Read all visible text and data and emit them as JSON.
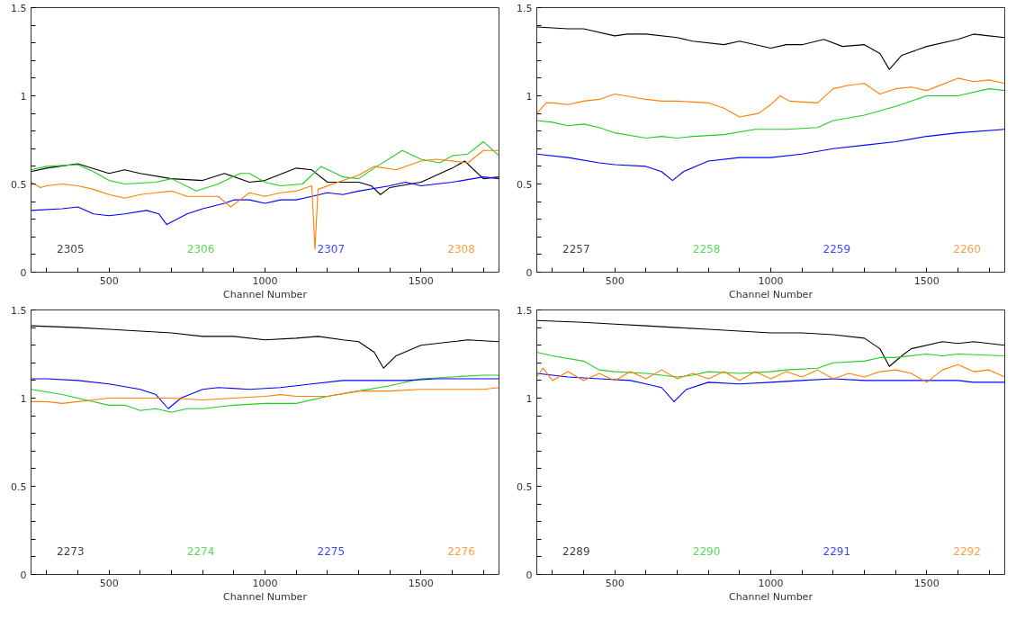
{
  "chart_data": [
    {
      "type": "line",
      "xlabel": "Channel Number",
      "xlim": [
        250,
        1750
      ],
      "ylim": [
        0,
        1.5
      ],
      "xticks": [
        {
          "value": 300,
          "label": null
        },
        {
          "value": 400,
          "label": null
        },
        500,
        {
          "value": 600,
          "label": null
        },
        {
          "value": 700,
          "label": null
        },
        {
          "value": 800,
          "label": null
        },
        {
          "value": 900,
          "label": null
        },
        1000,
        {
          "value": 1100,
          "label": null
        },
        {
          "value": 1200,
          "label": null
        },
        {
          "value": 1300,
          "label": null
        },
        {
          "value": 1400,
          "label": null
        },
        1500,
        {
          "value": 1600,
          "label": null
        },
        {
          "value": 1700,
          "label": null
        }
      ],
      "yticks": [
        0,
        {
          "value": 0.1,
          "label": null
        },
        {
          "value": 0.2,
          "label": null
        },
        {
          "value": 0.3,
          "label": null
        },
        {
          "value": 0.4,
          "label": null
        },
        0.5,
        {
          "value": 0.6,
          "label": null
        },
        {
          "value": 0.7,
          "label": null
        },
        {
          "value": 0.8,
          "label": null
        },
        {
          "value": 0.9,
          "label": null
        },
        1,
        {
          "value": 1.1,
          "label": null
        },
        {
          "value": 1.2,
          "label": null
        },
        {
          "value": 1.3,
          "label": null
        },
        {
          "value": 1.4,
          "label": null
        },
        1.5
      ],
      "grid": false,
      "marker": "none",
      "line_style": "solid",
      "series": [
        {
          "name": "2305",
          "color": "#000000",
          "x": [
            250,
            300,
            400,
            500,
            550,
            600,
            700,
            800,
            870,
            950,
            1000,
            1100,
            1150,
            1200,
            1300,
            1340,
            1370,
            1400,
            1500,
            1600,
            1640,
            1700,
            1750
          ],
          "values": [
            0.57,
            0.59,
            0.615,
            0.56,
            0.58,
            0.56,
            0.53,
            0.52,
            0.56,
            0.51,
            0.52,
            0.59,
            0.58,
            0.51,
            0.51,
            0.49,
            0.44,
            0.48,
            0.51,
            0.59,
            0.63,
            0.53,
            0.54
          ]
        },
        {
          "name": "2306",
          "color": "#22cc22",
          "x": [
            250,
            300,
            400,
            450,
            500,
            550,
            650,
            700,
            780,
            850,
            920,
            950,
            1000,
            1050,
            1120,
            1180,
            1250,
            1300,
            1350,
            1440,
            1500,
            1560,
            1600,
            1650,
            1700,
            1750
          ],
          "values": [
            0.58,
            0.6,
            0.61,
            0.57,
            0.52,
            0.5,
            0.51,
            0.53,
            0.46,
            0.5,
            0.56,
            0.56,
            0.51,
            0.49,
            0.5,
            0.6,
            0.54,
            0.53,
            0.59,
            0.69,
            0.64,
            0.62,
            0.66,
            0.67,
            0.74,
            0.66
          ]
        },
        {
          "name": "2307",
          "color": "#0000ff",
          "x": [
            250,
            350,
            400,
            450,
            500,
            550,
            620,
            660,
            685,
            750,
            800,
            870,
            900,
            950,
            1000,
            1050,
            1100,
            1150,
            1200,
            1250,
            1300,
            1400,
            1450,
            1500,
            1600,
            1700,
            1750
          ],
          "values": [
            0.35,
            0.36,
            0.37,
            0.33,
            0.32,
            0.33,
            0.35,
            0.33,
            0.27,
            0.33,
            0.36,
            0.39,
            0.41,
            0.41,
            0.39,
            0.41,
            0.41,
            0.43,
            0.45,
            0.44,
            0.46,
            0.49,
            0.51,
            0.49,
            0.51,
            0.54,
            0.53
          ]
        },
        {
          "name": "2308",
          "color": "#ff7f00",
          "x": [
            250,
            280,
            300,
            350,
            400,
            450,
            500,
            550,
            600,
            650,
            700,
            750,
            850,
            890,
            920,
            950,
            1000,
            1050,
            1100,
            1150,
            1160,
            1170,
            1250,
            1300,
            1350,
            1420,
            1500,
            1550,
            1650,
            1700,
            1750
          ],
          "values": [
            0.51,
            0.48,
            0.49,
            0.5,
            0.49,
            0.47,
            0.44,
            0.42,
            0.44,
            0.45,
            0.46,
            0.43,
            0.43,
            0.37,
            0.41,
            0.45,
            0.43,
            0.45,
            0.46,
            0.49,
            0.13,
            0.47,
            0.52,
            0.55,
            0.6,
            0.58,
            0.63,
            0.64,
            0.62,
            0.69,
            0.69
          ]
        }
      ]
    },
    {
      "type": "line",
      "xlabel": "Channel Number",
      "xlim": [
        250,
        1750
      ],
      "ylim": [
        0,
        1.5
      ],
      "xticks": [
        {
          "value": 300,
          "label": null
        },
        {
          "value": 400,
          "label": null
        },
        500,
        {
          "value": 600,
          "label": null
        },
        {
          "value": 700,
          "label": null
        },
        {
          "value": 800,
          "label": null
        },
        {
          "value": 900,
          "label": null
        },
        1000,
        {
          "value": 1100,
          "label": null
        },
        {
          "value": 1200,
          "label": null
        },
        {
          "value": 1300,
          "label": null
        },
        {
          "value": 1400,
          "label": null
        },
        1500,
        {
          "value": 1600,
          "label": null
        },
        {
          "value": 1700,
          "label": null
        }
      ],
      "yticks": [
        0,
        {
          "value": 0.1,
          "label": null
        },
        {
          "value": 0.2,
          "label": null
        },
        {
          "value": 0.3,
          "label": null
        },
        {
          "value": 0.4,
          "label": null
        },
        0.5,
        {
          "value": 0.6,
          "label": null
        },
        {
          "value": 0.7,
          "label": null
        },
        {
          "value": 0.8,
          "label": null
        },
        {
          "value": 0.9,
          "label": null
        },
        1,
        {
          "value": 1.1,
          "label": null
        },
        {
          "value": 1.2,
          "label": null
        },
        {
          "value": 1.3,
          "label": null
        },
        {
          "value": 1.4,
          "label": null
        },
        1.5
      ],
      "grid": false,
      "marker": "none",
      "line_style": "solid",
      "series": [
        {
          "name": "2257",
          "color": "#000000",
          "x": [
            250,
            350,
            400,
            500,
            540,
            600,
            700,
            750,
            850,
            900,
            1000,
            1050,
            1100,
            1170,
            1230,
            1300,
            1350,
            1380,
            1420,
            1500,
            1600,
            1650,
            1700,
            1750
          ],
          "values": [
            1.39,
            1.38,
            1.38,
            1.34,
            1.35,
            1.35,
            1.33,
            1.31,
            1.29,
            1.31,
            1.27,
            1.29,
            1.29,
            1.32,
            1.28,
            1.29,
            1.24,
            1.15,
            1.23,
            1.28,
            1.32,
            1.35,
            1.34,
            1.33
          ]
        },
        {
          "name": "2258",
          "color": "#22cc22",
          "x": [
            250,
            300,
            350,
            400,
            450,
            500,
            600,
            650,
            700,
            750,
            850,
            950,
            1050,
            1150,
            1200,
            1300,
            1400,
            1500,
            1600,
            1700,
            1750
          ],
          "values": [
            0.86,
            0.85,
            0.83,
            0.84,
            0.82,
            0.79,
            0.76,
            0.77,
            0.76,
            0.77,
            0.78,
            0.81,
            0.81,
            0.82,
            0.86,
            0.89,
            0.94,
            1.0,
            1.0,
            1.04,
            1.03
          ]
        },
        {
          "name": "2259",
          "color": "#0000ff",
          "x": [
            250,
            350,
            450,
            500,
            600,
            650,
            685,
            720,
            800,
            900,
            1000,
            1100,
            1200,
            1300,
            1400,
            1500,
            1600,
            1750
          ],
          "values": [
            0.67,
            0.65,
            0.62,
            0.61,
            0.6,
            0.57,
            0.52,
            0.57,
            0.63,
            0.65,
            0.65,
            0.67,
            0.7,
            0.72,
            0.74,
            0.77,
            0.79,
            0.81
          ]
        },
        {
          "name": "2260",
          "color": "#ff7f00",
          "x": [
            250,
            280,
            300,
            350,
            400,
            450,
            500,
            600,
            650,
            700,
            800,
            850,
            900,
            960,
            1000,
            1030,
            1060,
            1150,
            1200,
            1250,
            1300,
            1350,
            1400,
            1450,
            1500,
            1600,
            1650,
            1700,
            1750
          ],
          "values": [
            0.9,
            0.96,
            0.96,
            0.95,
            0.97,
            0.98,
            1.01,
            0.98,
            0.97,
            0.97,
            0.96,
            0.93,
            0.88,
            0.9,
            0.95,
            1.0,
            0.97,
            0.96,
            1.04,
            1.06,
            1.07,
            1.01,
            1.04,
            1.05,
            1.03,
            1.1,
            1.08,
            1.09,
            1.07
          ]
        }
      ]
    },
    {
      "type": "line",
      "xlabel": "Channel Number",
      "xlim": [
        250,
        1750
      ],
      "ylim": [
        0,
        1.5
      ],
      "xticks": [
        {
          "value": 300,
          "label": null
        },
        {
          "value": 400,
          "label": null
        },
        500,
        {
          "value": 600,
          "label": null
        },
        {
          "value": 700,
          "label": null
        },
        {
          "value": 800,
          "label": null
        },
        {
          "value": 900,
          "label": null
        },
        1000,
        {
          "value": 1100,
          "label": null
        },
        {
          "value": 1200,
          "label": null
        },
        {
          "value": 1300,
          "label": null
        },
        {
          "value": 1400,
          "label": null
        },
        1500,
        {
          "value": 1600,
          "label": null
        },
        {
          "value": 1700,
          "label": null
        }
      ],
      "yticks": [
        0,
        {
          "value": 0.1,
          "label": null
        },
        {
          "value": 0.2,
          "label": null
        },
        {
          "value": 0.3,
          "label": null
        },
        {
          "value": 0.4,
          "label": null
        },
        0.5,
        {
          "value": 0.6,
          "label": null
        },
        {
          "value": 0.7,
          "label": null
        },
        {
          "value": 0.8,
          "label": null
        },
        {
          "value": 0.9,
          "label": null
        },
        1,
        {
          "value": 1.1,
          "label": null
        },
        {
          "value": 1.2,
          "label": null
        },
        {
          "value": 1.3,
          "label": null
        },
        {
          "value": 1.4,
          "label": null
        },
        1.5
      ],
      "grid": false,
      "marker": "none",
      "line_style": "solid",
      "series": [
        {
          "name": "2273",
          "color": "#000000",
          "x": [
            250,
            400,
            500,
            600,
            700,
            800,
            900,
            1000,
            1100,
            1170,
            1250,
            1300,
            1350,
            1380,
            1420,
            1500,
            1600,
            1650,
            1750
          ],
          "values": [
            1.41,
            1.4,
            1.39,
            1.38,
            1.37,
            1.35,
            1.35,
            1.33,
            1.34,
            1.35,
            1.33,
            1.32,
            1.26,
            1.17,
            1.24,
            1.3,
            1.32,
            1.33,
            1.32
          ]
        },
        {
          "name": "2274",
          "color": "#22cc22",
          "x": [
            250,
            350,
            400,
            450,
            500,
            550,
            600,
            650,
            700,
            750,
            800,
            900,
            1000,
            1100,
            1200,
            1300,
            1400,
            1500,
            1600,
            1700,
            1750
          ],
          "values": [
            1.05,
            1.02,
            1.0,
            0.98,
            0.96,
            0.96,
            0.93,
            0.94,
            0.92,
            0.94,
            0.94,
            0.96,
            0.97,
            0.97,
            1.01,
            1.04,
            1.07,
            1.11,
            1.12,
            1.13,
            1.13
          ]
        },
        {
          "name": "2275",
          "color": "#0000ff",
          "x": [
            250,
            300,
            400,
            500,
            600,
            650,
            690,
            730,
            800,
            850,
            950,
            1050,
            1150,
            1250,
            1350,
            1450,
            1550,
            1750
          ],
          "values": [
            1.11,
            1.11,
            1.1,
            1.08,
            1.05,
            1.02,
            0.94,
            1.0,
            1.05,
            1.06,
            1.05,
            1.06,
            1.08,
            1.1,
            1.1,
            1.1,
            1.11,
            1.11
          ]
        },
        {
          "name": "2276",
          "color": "#ff7f00",
          "x": [
            250,
            300,
            350,
            400,
            450,
            500,
            600,
            700,
            800,
            900,
            1000,
            1050,
            1100,
            1200,
            1300,
            1400,
            1500,
            1600,
            1700,
            1750
          ],
          "values": [
            0.98,
            0.98,
            0.97,
            0.98,
            0.99,
            1.0,
            1.0,
            1.0,
            0.99,
            1.0,
            1.01,
            1.02,
            1.01,
            1.01,
            1.04,
            1.04,
            1.05,
            1.05,
            1.05,
            1.06
          ]
        }
      ]
    },
    {
      "type": "line",
      "xlabel": "Channel Number",
      "xlim": [
        250,
        1750
      ],
      "ylim": [
        0,
        1.5
      ],
      "xticks": [
        {
          "value": 300,
          "label": null
        },
        {
          "value": 400,
          "label": null
        },
        500,
        {
          "value": 600,
          "label": null
        },
        {
          "value": 700,
          "label": null
        },
        {
          "value": 800,
          "label": null
        },
        {
          "value": 900,
          "label": null
        },
        1000,
        {
          "value": 1100,
          "label": null
        },
        {
          "value": 1200,
          "label": null
        },
        {
          "value": 1300,
          "label": null
        },
        {
          "value": 1400,
          "label": null
        },
        1500,
        {
          "value": 1600,
          "label": null
        },
        {
          "value": 1700,
          "label": null
        }
      ],
      "yticks": [
        0,
        {
          "value": 0.1,
          "label": null
        },
        {
          "value": 0.2,
          "label": null
        },
        {
          "value": 0.3,
          "label": null
        },
        {
          "value": 0.4,
          "label": null
        },
        0.5,
        {
          "value": 0.6,
          "label": null
        },
        {
          "value": 0.7,
          "label": null
        },
        {
          "value": 0.8,
          "label": null
        },
        {
          "value": 0.9,
          "label": null
        },
        1,
        {
          "value": 1.1,
          "label": null
        },
        {
          "value": 1.2,
          "label": null
        },
        {
          "value": 1.3,
          "label": null
        },
        {
          "value": 1.4,
          "label": null
        },
        1.5
      ],
      "grid": false,
      "marker": "none",
      "line_style": "solid",
      "series": [
        {
          "name": "2289",
          "color": "#000000",
          "x": [
            250,
            400,
            500,
            600,
            700,
            800,
            900,
            1000,
            1100,
            1200,
            1300,
            1350,
            1380,
            1420,
            1450,
            1550,
            1600,
            1650,
            1750
          ],
          "values": [
            1.44,
            1.43,
            1.42,
            1.41,
            1.4,
            1.39,
            1.38,
            1.37,
            1.37,
            1.36,
            1.34,
            1.28,
            1.18,
            1.24,
            1.28,
            1.32,
            1.31,
            1.32,
            1.3
          ]
        },
        {
          "name": "2290",
          "color": "#22cc22",
          "x": [
            250,
            300,
            400,
            450,
            500,
            600,
            700,
            750,
            800,
            900,
            1000,
            1050,
            1150,
            1200,
            1300,
            1350,
            1400,
            1500,
            1550,
            1600,
            1750
          ],
          "values": [
            1.26,
            1.24,
            1.21,
            1.16,
            1.15,
            1.14,
            1.12,
            1.13,
            1.15,
            1.14,
            1.15,
            1.16,
            1.17,
            1.2,
            1.21,
            1.23,
            1.23,
            1.25,
            1.24,
            1.25,
            1.24
          ]
        },
        {
          "name": "2291",
          "color": "#0000ff",
          "x": [
            250,
            350,
            450,
            550,
            600,
            650,
            690,
            730,
            800,
            900,
            1000,
            1100,
            1200,
            1300,
            1400,
            1500,
            1600,
            1650,
            1750
          ],
          "values": [
            1.14,
            1.12,
            1.11,
            1.1,
            1.08,
            1.06,
            0.98,
            1.05,
            1.09,
            1.08,
            1.09,
            1.1,
            1.11,
            1.1,
            1.1,
            1.1,
            1.1,
            1.09,
            1.09
          ]
        },
        {
          "name": "2292",
          "color": "#ff7f00",
          "x": [
            250,
            270,
            300,
            350,
            400,
            450,
            500,
            550,
            600,
            650,
            700,
            750,
            800,
            850,
            900,
            950,
            1000,
            1050,
            1100,
            1150,
            1200,
            1250,
            1300,
            1350,
            1400,
            1450,
            1500,
            1550,
            1600,
            1650,
            1700,
            1750
          ],
          "values": [
            1.12,
            1.17,
            1.1,
            1.15,
            1.1,
            1.14,
            1.1,
            1.15,
            1.11,
            1.16,
            1.11,
            1.14,
            1.11,
            1.15,
            1.1,
            1.15,
            1.11,
            1.15,
            1.12,
            1.16,
            1.11,
            1.14,
            1.12,
            1.15,
            1.16,
            1.14,
            1.09,
            1.16,
            1.19,
            1.15,
            1.16,
            1.12
          ]
        }
      ]
    }
  ]
}
